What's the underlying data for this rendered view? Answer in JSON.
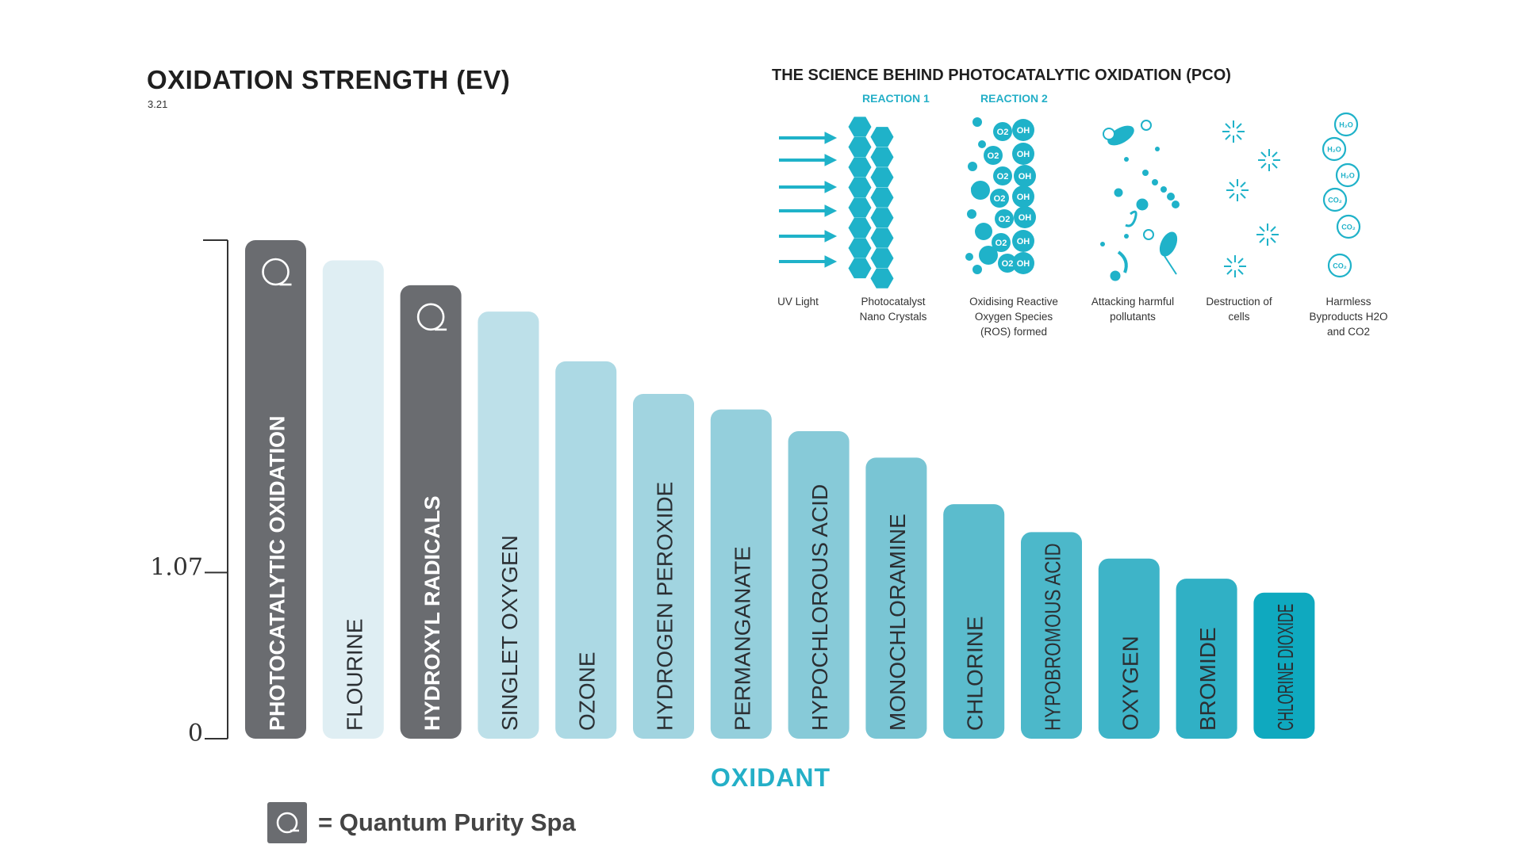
{
  "title": "OXIDATION STRENGTH (EV)",
  "subtitle": "3.21",
  "chart_data": {
    "type": "bar",
    "title": "OXIDATION STRENGTH (EV)",
    "xlabel": "OXIDANT",
    "ylabel": "",
    "ylim": [
      0,
      3.21
    ],
    "y_ticks": [
      "3.21",
      "1.07",
      "0"
    ],
    "categories": [
      "PHOTOCATALYTIC OXIDATION",
      "FLOURINE",
      "HYDROXYL RADICALS",
      "SINGLET OXYGEN",
      "OZONE",
      "HYDROGEN PEROXIDE",
      "PERMANGANATE",
      "HYPOCHLOROUS ACID",
      "MONOCHLORAMINE",
      "CHLORINE",
      "HYPOBROMOUS ACID",
      "OXYGEN",
      "BROMIDE",
      "CHLORINE DIOXIDE"
    ],
    "values": [
      3.21,
      3.08,
      2.92,
      2.75,
      2.43,
      2.22,
      2.12,
      1.98,
      1.81,
      1.51,
      1.33,
      1.16,
      1.03,
      0.94
    ],
    "highlight": [
      true,
      false,
      true,
      false,
      false,
      false,
      false,
      false,
      false,
      false,
      false,
      false,
      false,
      false
    ],
    "colors": [
      "#6a6c70",
      "#dfeef3",
      "#6a6c70",
      "#bde0e9",
      "#acd9e4",
      "#a1d4e0",
      "#94cfdc",
      "#87cad8",
      "#79c5d4",
      "#5bbccd",
      "#4cb8ca",
      "#3eb4c8",
      "#30b0c5",
      "#0fa9bf"
    ]
  },
  "legend": {
    "text": "= Quantum Purity Spa"
  },
  "pco": {
    "title": "THE SCIENCE BEHIND PHOTOCATALYTIC OXIDATION (PCO)",
    "reaction1": "REACTION 1",
    "reaction2": "REACTION 2",
    "stages": [
      "UV Light",
      "Photocatalyst Nano Crystals",
      "Oxidising Reactive Oxygen Species (ROS) formed",
      "Attacking harmful pollutants",
      "Destruction of cells",
      "Harmless Byproducts H2O and CO2"
    ],
    "ros_o2": "O2",
    "ros_oh": "OH",
    "byproduct_h2o": "H₂O",
    "byproduct_co2": "CO₂",
    "accent_color": "#1fb2c9"
  }
}
